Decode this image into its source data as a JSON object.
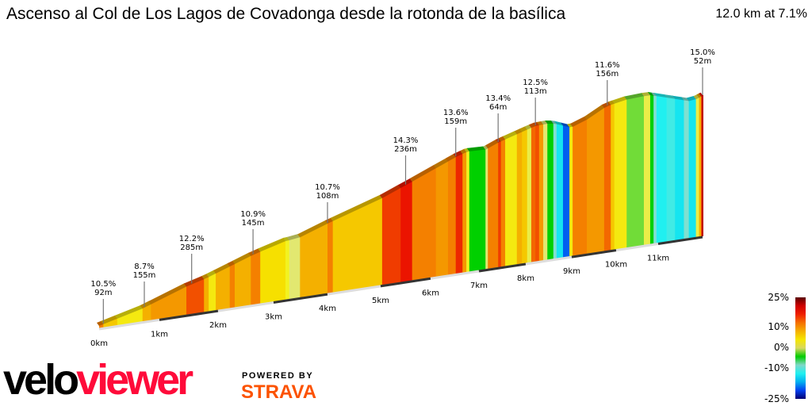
{
  "title": "Ascenso al Col de Los Lagos de Covadonga desde la rotonda de la basílica",
  "summary": "12.0 km at 7.1%",
  "chart_data": {
    "type": "area",
    "title": "Ascenso al Col de Los Lagos de Covadonga desde la rotonda de la basílica",
    "xlabel": "",
    "ylabel": "",
    "x_unit": "km",
    "xlim": [
      0,
      12.0
    ],
    "x_ticks": [
      "0km",
      "1km",
      "2km",
      "3km",
      "4km",
      "5km",
      "6km",
      "7km",
      "8km",
      "9km",
      "10km",
      "11km"
    ],
    "segments": [
      {
        "from": 0,
        "to": 0.07,
        "gradient": 10
      },
      {
        "from": 0.07,
        "to": 0.3,
        "gradient": 7
      },
      {
        "from": 0.3,
        "to": 0.72,
        "gradient": 5
      },
      {
        "from": 0.72,
        "to": 0.86,
        "gradient": 8
      },
      {
        "from": 0.86,
        "to": 1.46,
        "gradient": 9
      },
      {
        "from": 1.46,
        "to": 1.76,
        "gradient": 12
      },
      {
        "from": 1.76,
        "to": 1.84,
        "gradient": 8
      },
      {
        "from": 1.84,
        "to": 1.96,
        "gradient": 5
      },
      {
        "from": 1.96,
        "to": 2.21,
        "gradient": 8
      },
      {
        "from": 2.21,
        "to": 2.3,
        "gradient": 10
      },
      {
        "from": 2.3,
        "to": 2.59,
        "gradient": 8
      },
      {
        "from": 2.59,
        "to": 2.76,
        "gradient": 10
      },
      {
        "from": 2.76,
        "to": 3.22,
        "gradient": 6
      },
      {
        "from": 3.22,
        "to": 3.29,
        "gradient": 4
      },
      {
        "from": 3.29,
        "to": 3.49,
        "gradient": 2
      },
      {
        "from": 3.49,
        "to": 4.0,
        "gradient": 8
      },
      {
        "from": 4.0,
        "to": 4.1,
        "gradient": 10
      },
      {
        "from": 4.1,
        "to": 5.03,
        "gradient": 7
      },
      {
        "from": 5.03,
        "to": 5.4,
        "gradient": 13
      },
      {
        "from": 5.4,
        "to": 5.63,
        "gradient": 15
      },
      {
        "from": 5.63,
        "to": 6.11,
        "gradient": 10
      },
      {
        "from": 6.11,
        "to": 6.36,
        "gradient": 9
      },
      {
        "from": 6.36,
        "to": 6.52,
        "gradient": 10
      },
      {
        "from": 6.52,
        "to": 6.66,
        "gradient": 14
      },
      {
        "from": 6.66,
        "to": 6.74,
        "gradient": 9
      },
      {
        "from": 6.74,
        "to": 6.8,
        "gradient": 4
      },
      {
        "from": 6.8,
        "to": 7.14,
        "gradient": 0
      },
      {
        "from": 7.14,
        "to": 7.19,
        "gradient": 2
      },
      {
        "from": 7.19,
        "to": 7.41,
        "gradient": 10
      },
      {
        "from": 7.41,
        "to": 7.47,
        "gradient": 13
      },
      {
        "from": 7.47,
        "to": 7.56,
        "gradient": 10
      },
      {
        "from": 7.56,
        "to": 7.81,
        "gradient": 5
      },
      {
        "from": 7.81,
        "to": 7.92,
        "gradient": 8
      },
      {
        "from": 7.92,
        "to": 8.03,
        "gradient": 7
      },
      {
        "from": 8.03,
        "to": 8.12,
        "gradient": 3
      },
      {
        "from": 8.12,
        "to": 8.21,
        "gradient": 11
      },
      {
        "from": 8.21,
        "to": 8.29,
        "gradient": 12
      },
      {
        "from": 8.29,
        "to": 8.38,
        "gradient": 9
      },
      {
        "from": 8.38,
        "to": 8.47,
        "gradient": 2
      },
      {
        "from": 8.47,
        "to": 8.6,
        "gradient": 0
      },
      {
        "from": 8.6,
        "to": 8.67,
        "gradient": -2
      },
      {
        "from": 8.67,
        "to": 8.81,
        "gradient": -6
      },
      {
        "from": 8.81,
        "to": 8.95,
        "gradient": -12
      },
      {
        "from": 8.95,
        "to": 9.02,
        "gradient": 5
      },
      {
        "from": 9.02,
        "to": 9.34,
        "gradient": 10
      },
      {
        "from": 9.34,
        "to": 9.73,
        "gradient": 9
      },
      {
        "from": 9.73,
        "to": 9.88,
        "gradient": 11
      },
      {
        "from": 9.88,
        "to": 9.96,
        "gradient": 7
      },
      {
        "from": 9.96,
        "to": 10.25,
        "gradient": 5
      },
      {
        "from": 10.25,
        "to": 10.66,
        "gradient": 1
      },
      {
        "from": 10.66,
        "to": 10.81,
        "gradient": 3
      },
      {
        "from": 10.81,
        "to": 10.89,
        "gradient": 0
      },
      {
        "from": 10.89,
        "to": 10.96,
        "gradient": -2
      },
      {
        "from": 10.96,
        "to": 11.19,
        "gradient": -5
      },
      {
        "from": 11.19,
        "to": 11.38,
        "gradient": -4
      },
      {
        "from": 11.38,
        "to": 11.58,
        "gradient": -6
      },
      {
        "from": 11.58,
        "to": 11.69,
        "gradient": -2
      },
      {
        "from": 11.69,
        "to": 11.85,
        "gradient": -6
      },
      {
        "from": 11.85,
        "to": 11.92,
        "gradient": 3
      },
      {
        "from": 11.92,
        "to": 11.97,
        "gradient": 8
      },
      {
        "from": 11.97,
        "to": 12.0,
        "gradient": 15
      }
    ],
    "annotations": [
      {
        "km": 0.07,
        "gradient": "10.5%",
        "length": "92m"
      },
      {
        "km": 0.75,
        "gradient": "8.7%",
        "length": "155m"
      },
      {
        "km": 1.55,
        "gradient": "12.2%",
        "length": "285m"
      },
      {
        "km": 2.63,
        "gradient": "10.9%",
        "length": "145m"
      },
      {
        "km": 4.0,
        "gradient": "10.7%",
        "length": "108m"
      },
      {
        "km": 5.5,
        "gradient": "14.3%",
        "length": "236m"
      },
      {
        "km": 6.52,
        "gradient": "13.6%",
        "length": "159m"
      },
      {
        "km": 7.41,
        "gradient": "13.4%",
        "length": "64m"
      },
      {
        "km": 8.21,
        "gradient": "12.5%",
        "length": "113m"
      },
      {
        "km": 9.8,
        "gradient": "11.6%",
        "length": "156m"
      },
      {
        "km": 12.0,
        "gradient": "15.0%",
        "length": "52m"
      }
    ],
    "legend": {
      "placement": "bottom-right",
      "labels": [
        "25%",
        "10%",
        "0%",
        "-10%",
        "-25%"
      ],
      "colors": [
        "#5a0000",
        "#d00000",
        "#f02000",
        "#f57000",
        "#f5b000",
        "#f5e600",
        "#d8d860",
        "#00cc00",
        "#80d8c8",
        "#20f0f0",
        "#00b0f0",
        "#0040f0",
        "#000070"
      ]
    }
  },
  "branding": {
    "logo_part1": "velo",
    "logo_part2": "viewer",
    "powered_by": "POWERED BY",
    "strava": "STRAVA"
  }
}
